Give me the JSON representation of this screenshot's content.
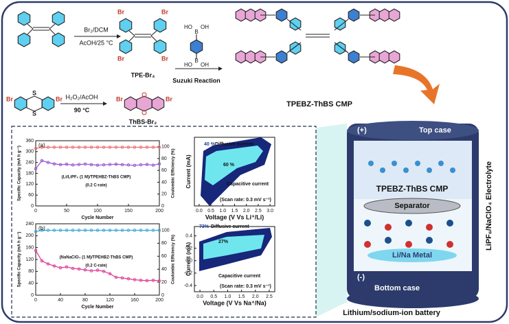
{
  "scheme": {
    "step1_reagents": [
      "Br₂/DCM",
      "AcOH/25 °C"
    ],
    "tpe_br4": "TPE-Br₄",
    "tpe_br_labels": [
      "Br",
      "Br",
      "Br",
      "Br"
    ],
    "boronic_labels": [
      "HO",
      "B",
      "OH",
      "HO",
      "B",
      "OH"
    ],
    "suzuki": "Suzuki Reaction",
    "product": "TPEBZ-ThBS CMP",
    "step2_reagents": [
      "H₂O₂/AcOH",
      "90 °C"
    ],
    "thianthrene_labels": [
      "Br",
      "S",
      "S",
      "Br"
    ],
    "thbs_labels": [
      "Br",
      "Br"
    ],
    "thbs_br2": "ThBS-Br₂"
  },
  "battery": {
    "plus": "(+)",
    "top_case": "Top case",
    "electrode": "TPEBZ-ThBS CMP",
    "separator": "Separator",
    "metal": "Li/Na Metal",
    "minus": "(-)",
    "bottom_case": "Bottom case",
    "caption": "Lithium/sodium-ion battery",
    "electrolyte": "LiPF₆/NaClO₄ Electrolyte"
  },
  "chart_data": [
    {
      "type": "line",
      "panel": "(a)",
      "x_label": "Cycle Number",
      "y_label": "Specific Capacity (mA h g⁻¹)",
      "y2_label": "Coulombic Efficiency (%)",
      "annotations": [
        "(Li/LiPF₆ (1 M)/TPEHBZ-ThBS CMP)",
        "(0.2 C-rate)"
      ],
      "xlim": [
        0,
        200
      ],
      "xticks": [
        0,
        50,
        100,
        150,
        200
      ],
      "ylim": [
        0,
        360
      ],
      "yticks": [
        0,
        60,
        120,
        180,
        240,
        300,
        360
      ],
      "y2lim": [
        0,
        110
      ],
      "y2ticks": [
        0,
        20,
        40,
        60,
        80,
        100
      ],
      "x": [
        0,
        10,
        20,
        30,
        40,
        50,
        60,
        70,
        80,
        90,
        100,
        110,
        120,
        130,
        140,
        150,
        160,
        170,
        180,
        190,
        200
      ],
      "series": [
        {
          "color": "#9b59d0",
          "values": [
            205,
            250,
            240,
            232,
            228,
            230,
            226,
            229,
            231,
            228,
            225,
            227,
            229,
            230,
            228,
            226,
            224,
            227,
            229,
            225,
            232
          ]
        },
        {
          "color": "#ef6f6f",
          "axis": "y2",
          "values": [
            97,
            99,
            99,
            99,
            99,
            99,
            99,
            99,
            99,
            99,
            99,
            99,
            99,
            99,
            99,
            99,
            99,
            99,
            99,
            99,
            99
          ]
        }
      ]
    },
    {
      "type": "line",
      "panel": "(b)",
      "x_label": "Cycle Number",
      "y_label": "Specific Capacity (mA h g⁻¹)",
      "y2_label": "Coulombic Efficiency (%)",
      "annotations": [
        "(NaNaClO₄ (1 M)/TPEHBZ-ThBS CMP)",
        "(0.2 C-rate)"
      ],
      "xlim": [
        0,
        200
      ],
      "xticks": [
        0,
        40,
        80,
        120,
        160,
        200
      ],
      "ylim": [
        0,
        240
      ],
      "yticks": [
        0,
        40,
        80,
        120,
        160,
        200,
        240
      ],
      "y2lim": [
        0,
        110
      ],
      "y2ticks": [
        0,
        20,
        40,
        60,
        80,
        100
      ],
      "x": [
        0,
        10,
        20,
        30,
        40,
        50,
        60,
        70,
        80,
        90,
        100,
        110,
        120,
        130,
        140,
        150,
        160,
        170,
        180,
        190,
        200
      ],
      "series": [
        {
          "color": "#e0409a",
          "values": [
            150,
            115,
            105,
            98,
            92,
            95,
            90,
            88,
            85,
            82,
            84,
            80,
            72,
            60,
            58,
            55,
            52,
            50,
            49,
            50,
            48
          ]
        },
        {
          "color": "#3fa8d8",
          "axis": "y2",
          "values": [
            98,
            100,
            100,
            100,
            100,
            100,
            100,
            100,
            100,
            100,
            100,
            100,
            100,
            100,
            100,
            100,
            100,
            100,
            100,
            100,
            100
          ]
        }
      ]
    },
    {
      "type": "cv",
      "x_label": "Voltage (V Vs Li⁺/Li)",
      "y_label": "Current (mA)",
      "annotations": [
        "40 %",
        "Diffusive current",
        "60 %",
        "Capacitive current",
        "(Scan rate: 0.3 mV s⁻¹)"
      ],
      "xlim": [
        -0.2,
        3.2
      ],
      "xticks": [
        {
          "value": 0,
          "label": "0.0"
        },
        0.5,
        {
          "value": 1,
          "label": "1.0"
        },
        1.5,
        {
          "value": 2,
          "label": "2.0"
        },
        2.5,
        {
          "value": 3,
          "label": "3.0"
        }
      ]
    },
    {
      "type": "cv",
      "x_label": "Voltage (V Vs Na⁺/Na)",
      "y_label": "Current (mA)",
      "annotations": [
        "73%",
        "Diffusive current",
        "27%",
        "Capacitive current",
        "(Scan rate: 0.3 mV s⁻¹)"
      ],
      "xlim": [
        -0.2,
        2.7
      ],
      "xticks": [
        {
          "value": 0,
          "label": "0.0"
        },
        0.5,
        {
          "value": 1,
          "label": "1.0"
        },
        1.5,
        {
          "value": 2,
          "label": "2.0"
        },
        2.5
      ],
      "ylim": [
        -0.5,
        0.55
      ],
      "yticks": [
        -0.4,
        -0.2,
        {
          "value": 0,
          "label": "0.0"
        },
        0.2,
        0.4
      ]
    }
  ]
}
